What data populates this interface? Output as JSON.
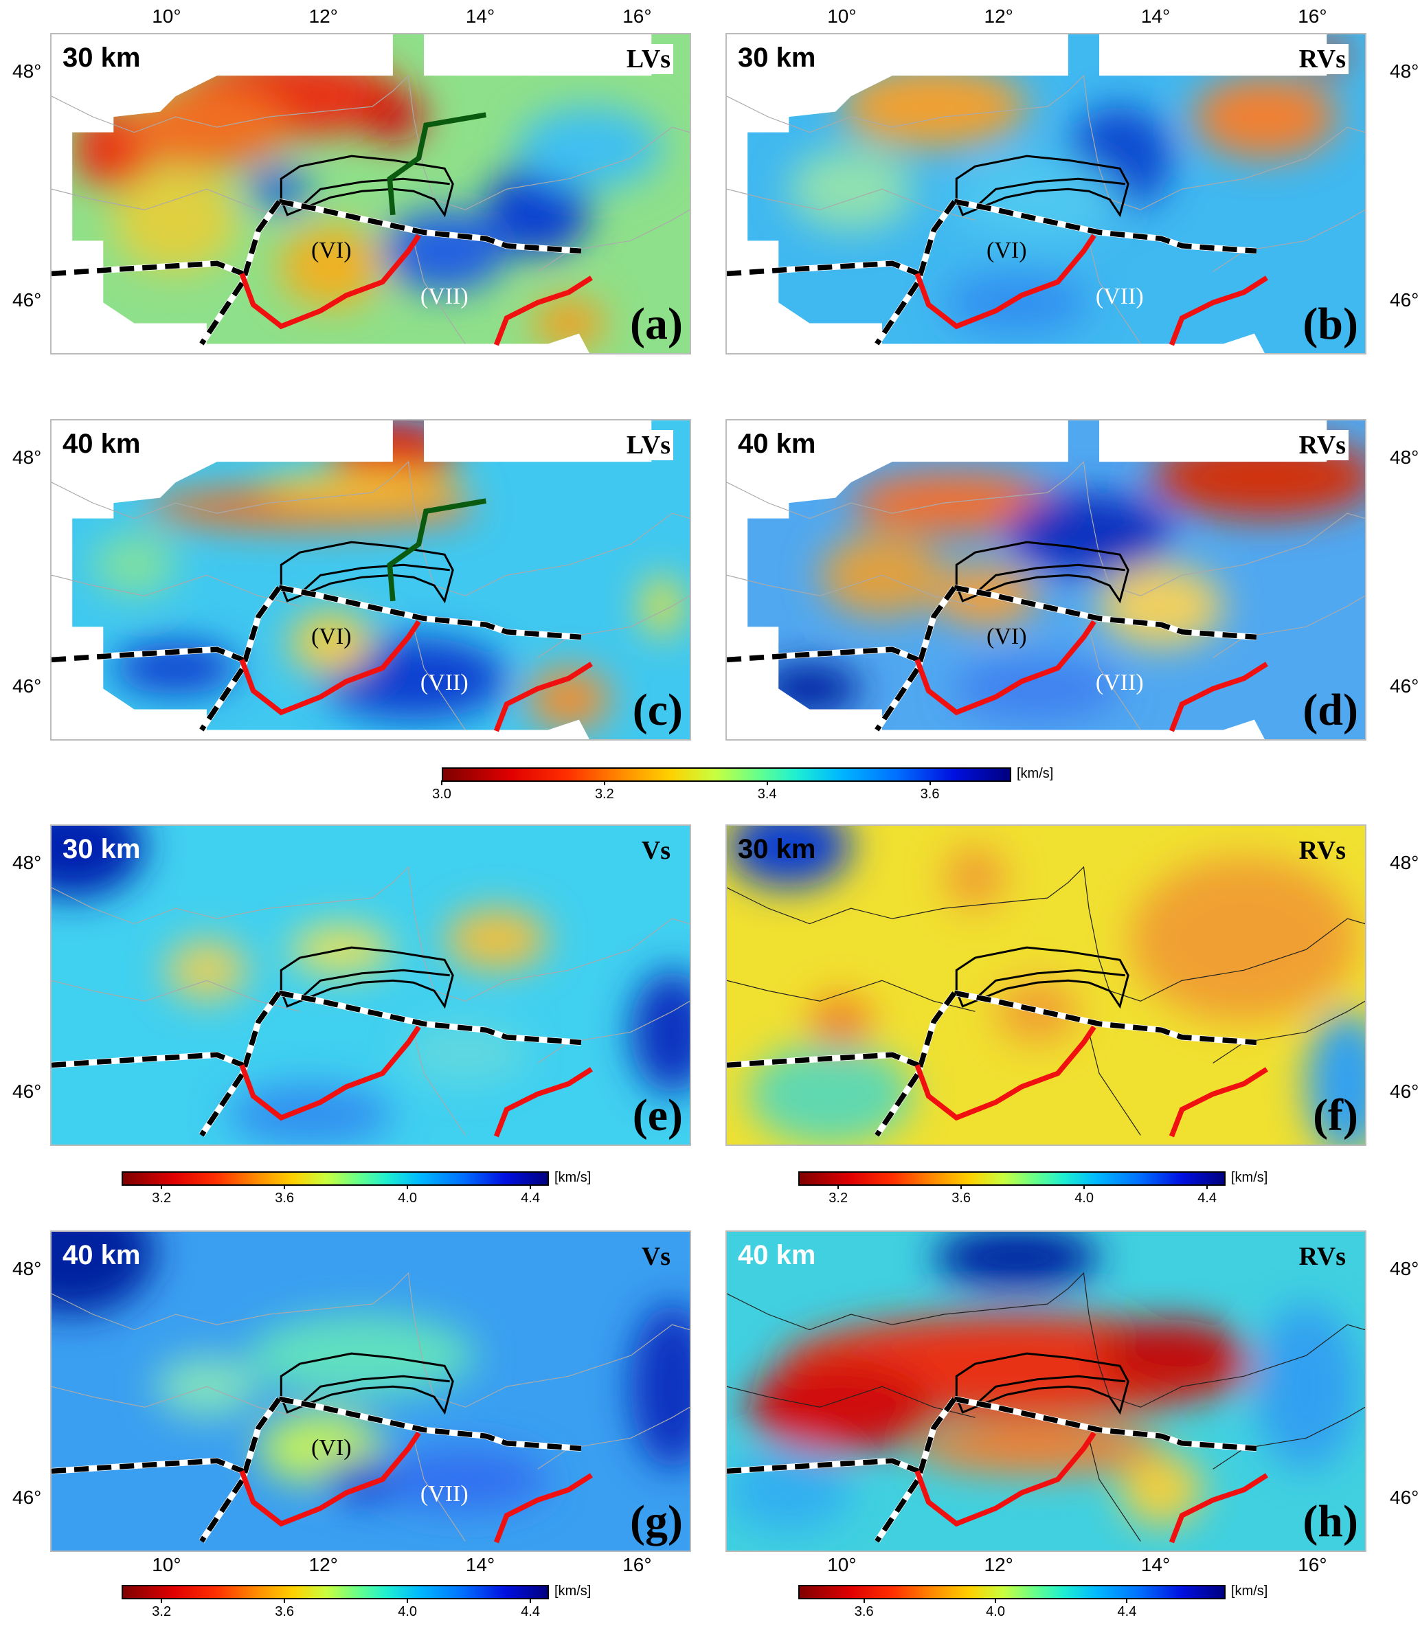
{
  "axes": {
    "lon_ticks": [
      "10°",
      "12°",
      "14°",
      "16°"
    ],
    "lat_ticks": [
      "48°",
      "46°"
    ]
  },
  "region_labels": {
    "vi": "(VI)",
    "vii": "(VII)"
  },
  "panels": [
    {
      "id": "a",
      "depth": "30 km",
      "type": "LVs",
      "letter": "(a)"
    },
    {
      "id": "b",
      "depth": "30 km",
      "type": "RVs",
      "letter": "(b)"
    },
    {
      "id": "c",
      "depth": "40 km",
      "type": "LVs",
      "letter": "(c)"
    },
    {
      "id": "d",
      "depth": "40 km",
      "type": "RVs",
      "letter": "(d)"
    },
    {
      "id": "e",
      "depth": "30 km",
      "type": "Vs",
      "letter": "(e)"
    },
    {
      "id": "f",
      "depth": "30 km",
      "type": "RVs",
      "letter": "(f)"
    },
    {
      "id": "g",
      "depth": "40 km",
      "type": "Vs",
      "letter": "(g)"
    },
    {
      "id": "h",
      "depth": "40 km",
      "type": "RVs",
      "letter": "(h)"
    }
  ],
  "colorbars": [
    {
      "id": "ad",
      "range": [
        3.0,
        3.7
      ],
      "ticks": [
        "3.0",
        "3.2",
        "3.4",
        "3.6"
      ],
      "tick_values": [
        3.0,
        3.2,
        3.4,
        3.6
      ],
      "unit": "[km/s]"
    },
    {
      "id": "e",
      "range": [
        3.07,
        4.46
      ],
      "ticks": [
        "3.2",
        "3.6",
        "4.0",
        "4.4"
      ],
      "tick_values": [
        3.2,
        3.6,
        4.0,
        4.4
      ],
      "unit": "[km/s]"
    },
    {
      "id": "f",
      "range": [
        3.07,
        4.46
      ],
      "ticks": [
        "3.2",
        "3.6",
        "4.0",
        "4.4"
      ],
      "tick_values": [
        3.2,
        3.6,
        4.0,
        4.4
      ],
      "unit": "[km/s]"
    },
    {
      "id": "g",
      "range": [
        3.07,
        4.46
      ],
      "ticks": [
        "3.2",
        "3.6",
        "4.0",
        "4.4"
      ],
      "tick_values": [
        3.2,
        3.6,
        4.0,
        4.4
      ],
      "unit": "[km/s]"
    },
    {
      "id": "h",
      "range": [
        3.4,
        4.7
      ],
      "ticks": [
        "3.6",
        "4.0",
        "4.4"
      ],
      "tick_values": [
        3.6,
        4.0,
        4.4
      ],
      "unit": "[km/s]"
    }
  ]
}
